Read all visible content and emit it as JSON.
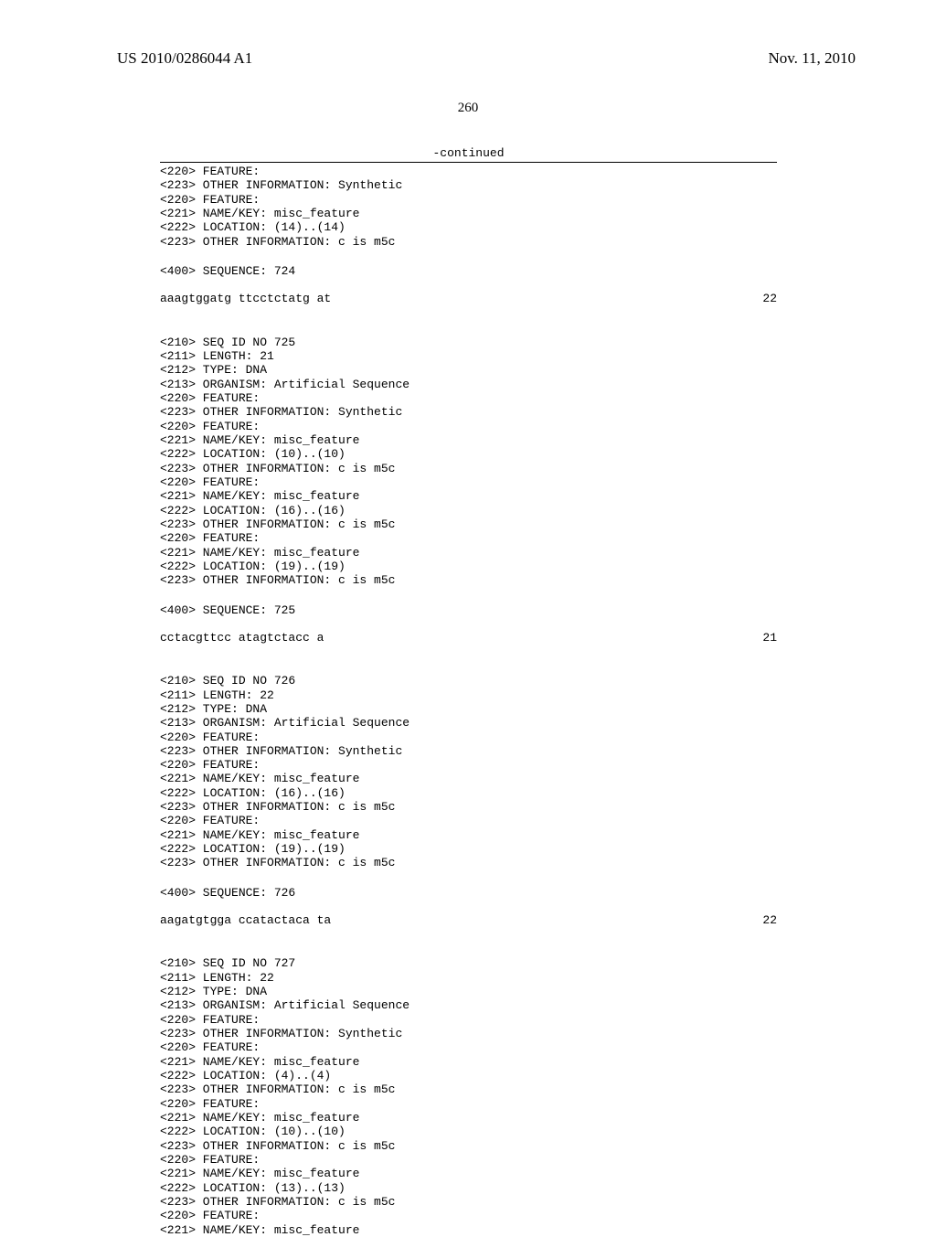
{
  "header": {
    "publication_number": "US 2010/0286044 A1",
    "publication_date": "Nov. 11, 2010",
    "page_number": "260"
  },
  "continued_label": "-continued",
  "blocks": {
    "b0": "<220> FEATURE:\n<223> OTHER INFORMATION: Synthetic\n<220> FEATURE:\n<221> NAME/KEY: misc_feature\n<222> LOCATION: (14)..(14)\n<223> OTHER INFORMATION: c is m5c",
    "s0_label": "<400> SEQUENCE: 724",
    "s0_seq": "aaagtggatg ttcctctatg at",
    "s0_len": "22",
    "b1": "<210> SEQ ID NO 725\n<211> LENGTH: 21\n<212> TYPE: DNA\n<213> ORGANISM: Artificial Sequence\n<220> FEATURE:\n<223> OTHER INFORMATION: Synthetic\n<220> FEATURE:\n<221> NAME/KEY: misc_feature\n<222> LOCATION: (10)..(10)\n<223> OTHER INFORMATION: c is m5c\n<220> FEATURE:\n<221> NAME/KEY: misc_feature\n<222> LOCATION: (16)..(16)\n<223> OTHER INFORMATION: c is m5c\n<220> FEATURE:\n<221> NAME/KEY: misc_feature\n<222> LOCATION: (19)..(19)\n<223> OTHER INFORMATION: c is m5c",
    "s1_label": "<400> SEQUENCE: 725",
    "s1_seq": "cctacgttcc atagtctacc a",
    "s1_len": "21",
    "b2": "<210> SEQ ID NO 726\n<211> LENGTH: 22\n<212> TYPE: DNA\n<213> ORGANISM: Artificial Sequence\n<220> FEATURE:\n<223> OTHER INFORMATION: Synthetic\n<220> FEATURE:\n<221> NAME/KEY: misc_feature\n<222> LOCATION: (16)..(16)\n<223> OTHER INFORMATION: c is m5c\n<220> FEATURE:\n<221> NAME/KEY: misc_feature\n<222> LOCATION: (19)..(19)\n<223> OTHER INFORMATION: c is m5c",
    "s2_label": "<400> SEQUENCE: 726",
    "s2_seq": "aagatgtgga ccatactaca ta",
    "s2_len": "22",
    "b3": "<210> SEQ ID NO 727\n<211> LENGTH: 22\n<212> TYPE: DNA\n<213> ORGANISM: Artificial Sequence\n<220> FEATURE:\n<223> OTHER INFORMATION: Synthetic\n<220> FEATURE:\n<221> NAME/KEY: misc_feature\n<222> LOCATION: (4)..(4)\n<223> OTHER INFORMATION: c is m5c\n<220> FEATURE:\n<221> NAME/KEY: misc_feature\n<222> LOCATION: (10)..(10)\n<223> OTHER INFORMATION: c is m5c\n<220> FEATURE:\n<221> NAME/KEY: misc_feature\n<222> LOCATION: (13)..(13)\n<223> OTHER INFORMATION: c is m5c\n<220> FEATURE:\n<221> NAME/KEY: misc_feature"
  }
}
